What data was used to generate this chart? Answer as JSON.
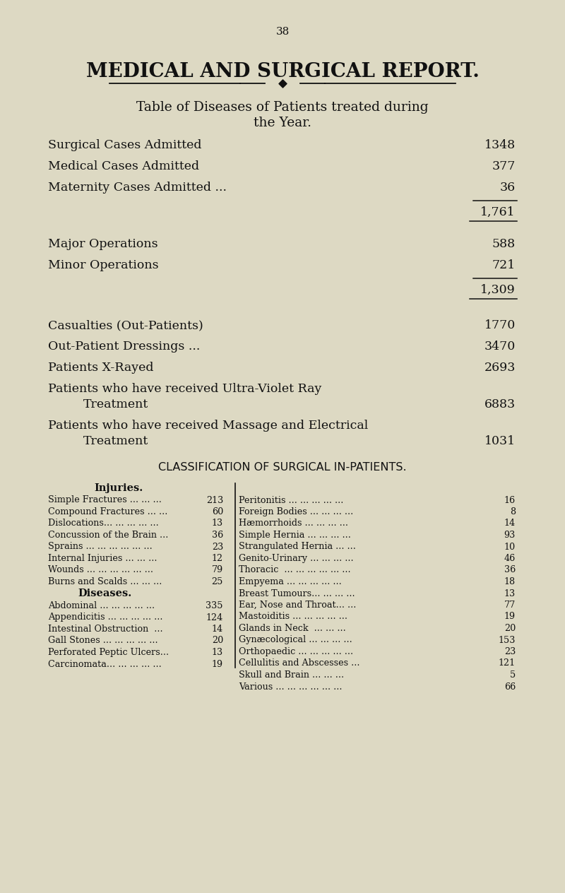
{
  "page_number": "38",
  "title": "MEDICAL AND SURGICAL REPORT.",
  "subtitle1": "Table of Diseases of Patients treated during",
  "subtitle2": "the Year.",
  "bg_color": "#ddd9c3",
  "text_color": "#111111",
  "s1_labels": [
    "Surgical Cases Admitted",
    "Medical Cases Admitted",
    "Maternity Cases Admitted ..."
  ],
  "s1_dots": [
    "... ... ... ...",
    "... ... ... ...",
    "... ... ... ..."
  ],
  "s1_values": [
    "1348",
    "377",
    "36"
  ],
  "total1": "1,761",
  "s2_labels": [
    "Major Operations",
    "Minor Operations"
  ],
  "s2_dots": [
    "... ... ... ... ...",
    "... ... ... ... ..."
  ],
  "s2_values": [
    "588",
    "721"
  ],
  "total2": "1,309",
  "s3_rows": [
    {
      "line1": "Casualties (Out-Patients)",
      "dots": "... ... ... ...",
      "value": "1770",
      "two_line": false
    },
    {
      "line1": "Out-Patient Dressings ...",
      "dots": "... ... ... ...",
      "value": "3470",
      "two_line": false
    },
    {
      "line1": "Patients X-Rayed",
      "dots": "... ... ... ...",
      "value": "2693",
      "two_line": false
    },
    {
      "line1": "Patients who have received Ultra-Violet Ray",
      "line2": "Treatment",
      "dots2": "... ... ... ... ...",
      "value": "6883",
      "two_line": true
    },
    {
      "line1": "Patients who have received Massage and Electrical",
      "line2": "Treatment",
      "dots2": "... ... ... ... ...",
      "value": "1031",
      "two_line": true
    }
  ],
  "class_title": "CLASSIFICATION OF SURGICAL IN-PATIENTS.",
  "inj_title": "Injuries.",
  "inj_labels": [
    "Simple Fractures ... ... ...",
    "Compound Fractures ... ...",
    "Dislocations... ... ... ... ...",
    "Concussion of the Brain ...",
    "Sprains ... ... ... ... ... ...",
    "Internal Injuries ... ... ...",
    "Wounds ... ... ... ... ... ...",
    "Burns and Scalds ... ... ..."
  ],
  "inj_values": [
    "213",
    "60",
    "13",
    "36",
    "23",
    "12",
    "79",
    "25"
  ],
  "dis_title": "Diseases.",
  "dis_labels": [
    "Abdominal ... ... ... ... ...",
    "Appendicitis ... ... ... ... ...",
    "Intestinal Obstruction  ...",
    "Gall Stones ... ... ... ... ...",
    "Perforated Peptic Ulcers...",
    "Carcinomata... ... ... ... ..."
  ],
  "dis_values": [
    "335",
    "124",
    "14",
    "20",
    "13",
    "19"
  ],
  "right_labels": [
    "Peritonitis ... ... ... ... ...",
    "Foreign Bodies ... ... ... ...",
    "Hæmorrhoids ... ... ... ...",
    "Simple Hernia ... ... ... ...",
    "Strangulated Hernia ... ...",
    "Genito-Urinary ... ... ... ...",
    "Thoracic  ... ... ... ... ... ...",
    "Empyema ... ... ... ... ...",
    "Breast Tumours... ... ... ...",
    "Ear, Nose and Throat... ...",
    "Mastoiditis ... ... ... ... ...",
    "Glands in Neck  ... ... ...",
    "Gynæcological ... ... ... ...",
    "Orthopaedic ... ... ... ... ...",
    "Cellulitis and Abscesses ...",
    "Skull and Brain ... ... ...",
    "Various ... ... ... ... ... ..."
  ],
  "right_values": [
    "16",
    "8",
    "14",
    "93",
    "10",
    "46",
    "36",
    "18",
    "13",
    "77",
    "19",
    "20",
    "153",
    "23",
    "121",
    "5",
    "66"
  ]
}
